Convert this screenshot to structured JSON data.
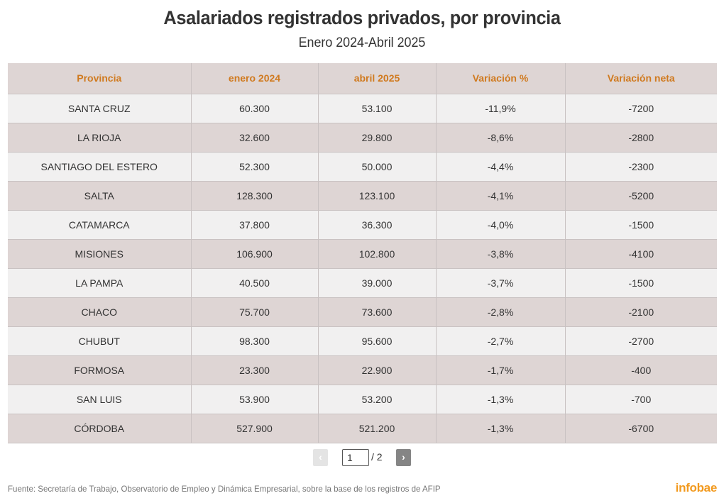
{
  "header": {
    "title": "Asalariados registrados privados, por provincia",
    "subtitle": "Enero 2024-Abril 2025"
  },
  "chart_data": {
    "type": "table",
    "title": "Asalariados registrados privados, por provincia",
    "subtitle": "Enero 2024-Abril 2025",
    "columns": [
      "Provincia",
      "enero 2024",
      "abril 2025",
      "Variación %",
      "Variación neta"
    ],
    "rows": [
      [
        "SANTA CRUZ",
        "60.300",
        "53.100",
        "-11,9%",
        "-7200"
      ],
      [
        "LA RIOJA",
        "32.600",
        "29.800",
        "-8,6%",
        "-2800"
      ],
      [
        "SANTIAGO DEL ESTERO",
        "52.300",
        "50.000",
        "-4,4%",
        "-2300"
      ],
      [
        "SALTA",
        "128.300",
        "123.100",
        "-4,1%",
        "-5200"
      ],
      [
        "CATAMARCA",
        "37.800",
        "36.300",
        "-4,0%",
        "-1500"
      ],
      [
        "MISIONES",
        "106.900",
        "102.800",
        "-3,8%",
        "-4100"
      ],
      [
        "LA PAMPA",
        "40.500",
        "39.000",
        "-3,7%",
        "-1500"
      ],
      [
        "CHACO",
        "75.700",
        "73.600",
        "-2,8%",
        "-2100"
      ],
      [
        "CHUBUT",
        "98.300",
        "95.600",
        "-2,7%",
        "-2700"
      ],
      [
        "FORMOSA",
        "23.300",
        "22.900",
        "-1,7%",
        "-400"
      ],
      [
        "SAN LUIS",
        "53.900",
        "53.200",
        "-1,3%",
        "-700"
      ],
      [
        "CÓRDOBA",
        "527.900",
        "521.200",
        "-1,3%",
        "-6700"
      ]
    ]
  },
  "pagination": {
    "prev_label": "‹",
    "next_label": "›",
    "current_page": "1",
    "total_label": "/ 2"
  },
  "footer": {
    "source": "Fuente: Secretaría de Trabajo, Observatorio de Empleo y Dinámica Empresarial, sobre la base de los registros de AFIP",
    "logo": "infobae"
  },
  "colors": {
    "header_text": "#d07a1f",
    "row_light": "#f1f0f0",
    "row_dark": "#ded5d4",
    "logo": "#f29a1f"
  }
}
